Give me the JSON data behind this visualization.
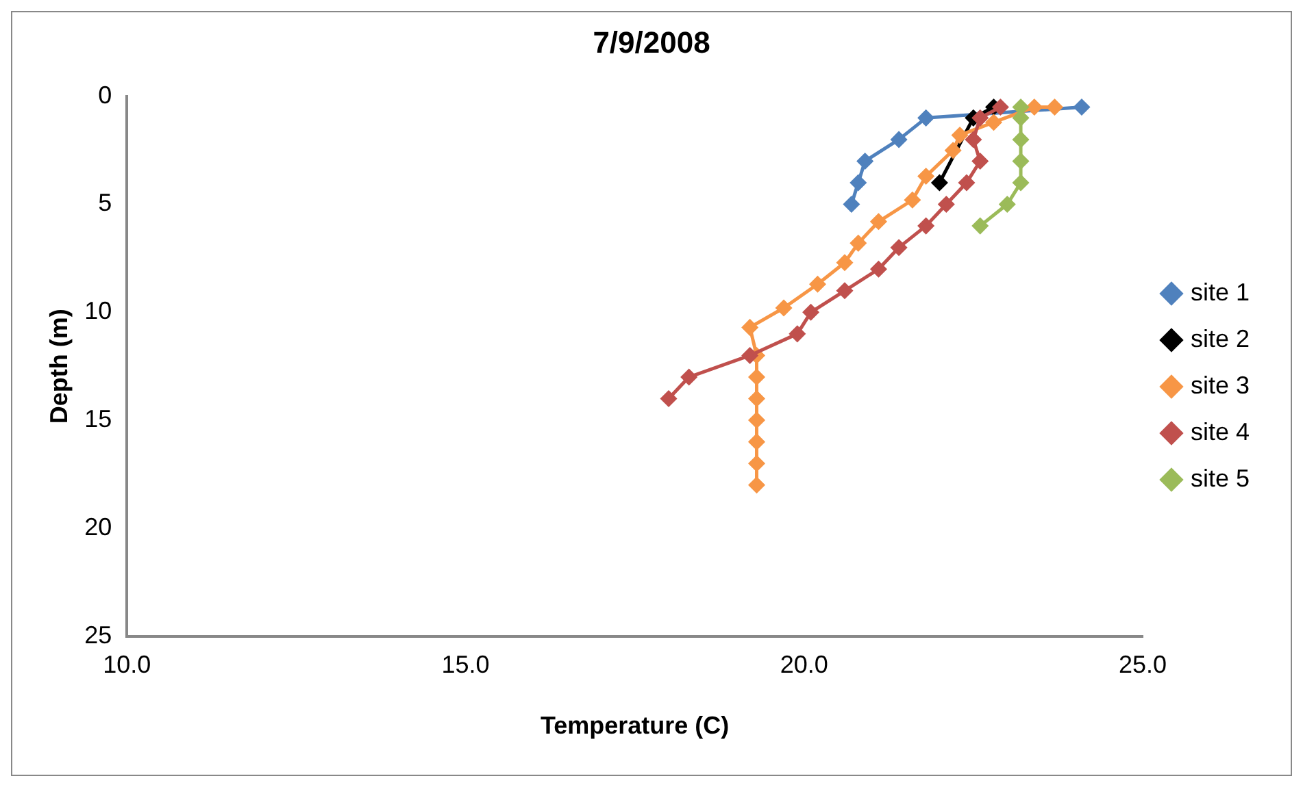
{
  "chart_data": {
    "type": "line",
    "title": "7/9/2008",
    "xlabel": "Temperature (C)",
    "ylabel": "Depth (m)",
    "xlim": [
      10,
      25
    ],
    "xticks": [
      {
        "value": 10,
        "label": "10.0"
      },
      {
        "value": 15,
        "label": "15.0"
      },
      {
        "value": 20,
        "label": "20.0"
      },
      {
        "value": 25,
        "label": "25.0"
      }
    ],
    "ylim": [
      25,
      0
    ],
    "yticks": [
      0,
      5,
      10,
      15,
      20,
      25
    ],
    "grid": false,
    "legend": "right",
    "marker": "diamond",
    "series": [
      {
        "name": "site 1",
        "color": "#4f81bd",
        "x": [
          24.1,
          21.8,
          21.4,
          20.9,
          20.8,
          20.7
        ],
        "values": [
          0.5,
          1,
          2,
          3,
          4,
          5
        ]
      },
      {
        "name": "site 2",
        "color": "#000000",
        "x": [
          22.8,
          22.5,
          22.0
        ],
        "values": [
          0.5,
          1,
          4
        ]
      },
      {
        "name": "site 3",
        "color": "#f79646",
        "x": [
          23.7,
          23.4,
          22.8,
          22.3,
          22.2,
          21.8,
          21.6,
          21.1,
          20.8,
          20.6,
          20.2,
          19.7,
          19.2,
          19.3,
          19.3,
          19.3,
          19.3,
          19.3,
          19.3,
          19.3
        ],
        "values": [
          0.5,
          0.5,
          1.2,
          1.8,
          2.5,
          3.7,
          4.8,
          5.8,
          6.8,
          7.7,
          8.7,
          9.8,
          10.7,
          12,
          13,
          14,
          15,
          16,
          17,
          18
        ]
      },
      {
        "name": "site 4",
        "color": "#c0504d",
        "x": [
          22.9,
          22.6,
          22.5,
          22.6,
          22.4,
          22.1,
          21.8,
          21.4,
          21.1,
          20.6,
          20.1,
          19.9,
          19.2,
          18.3,
          18.0
        ],
        "values": [
          0.5,
          1,
          2,
          3,
          4,
          5,
          6,
          7,
          8,
          9,
          10,
          11,
          12,
          13,
          14
        ]
      },
      {
        "name": "site 5",
        "color": "#9bbb59",
        "x": [
          23.2,
          23.2,
          23.2,
          23.2,
          23.2,
          23.0,
          22.6
        ],
        "values": [
          0.5,
          1,
          2,
          3,
          4,
          5,
          6
        ]
      }
    ]
  }
}
